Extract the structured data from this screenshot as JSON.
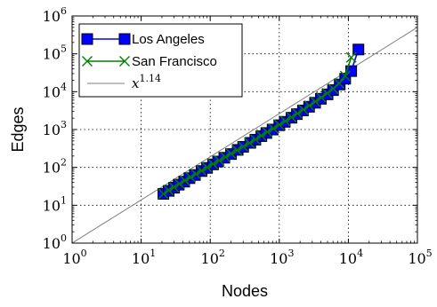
{
  "chart_data": {
    "type": "scatter",
    "xlabel": "Nodes",
    "ylabel": "Edges",
    "x_scale": "log",
    "y_scale": "log",
    "xlim": [
      1,
      100000
    ],
    "ylim": [
      1,
      1000000
    ],
    "x_ticks": [
      {
        "base": "10",
        "exp": "0"
      },
      {
        "base": "10",
        "exp": "1"
      },
      {
        "base": "10",
        "exp": "2"
      },
      {
        "base": "10",
        "exp": "3"
      },
      {
        "base": "10",
        "exp": "4"
      },
      {
        "base": "10",
        "exp": "5"
      }
    ],
    "y_ticks": [
      {
        "base": "10",
        "exp": "0"
      },
      {
        "base": "10",
        "exp": "1"
      },
      {
        "base": "10",
        "exp": "2"
      },
      {
        "base": "10",
        "exp": "3"
      },
      {
        "base": "10",
        "exp": "4"
      },
      {
        "base": "10",
        "exp": "5"
      },
      {
        "base": "10",
        "exp": "6"
      }
    ],
    "grid": true,
    "legend_position": "top-left",
    "series": [
      {
        "name": "Los Angeles",
        "marker": "square",
        "color": "#0000ff",
        "edge_color": "#000000",
        "x": [
          21,
          25,
          30,
          35,
          42,
          50,
          60,
          75,
          90,
          110,
          130,
          160,
          200,
          250,
          300,
          380,
          450,
          550,
          650,
          800,
          1000,
          1200,
          1500,
          1800,
          2200,
          2700,
          3300,
          4000,
          5000,
          6000,
          7500,
          9000,
          11000,
          14000
        ],
        "y": [
          20,
          24,
          29,
          35,
          42,
          52,
          63,
          80,
          97,
          120,
          143,
          180,
          225,
          290,
          350,
          445,
          540,
          670,
          810,
          1000,
          1300,
          1600,
          2050,
          2550,
          3200,
          4000,
          5100,
          6500,
          8500,
          11000,
          15500,
          22000,
          35000,
          130000
        ]
      },
      {
        "name": "San Francisco",
        "marker": "x",
        "color": "#008000",
        "x": [
          21,
          25,
          30,
          36,
          43,
          52,
          62,
          75,
          90,
          110,
          135,
          165,
          200,
          245,
          300,
          370,
          450,
          550,
          670,
          820,
          1000,
          1220,
          1500,
          1830,
          2230,
          2720,
          3320,
          4050,
          4950,
          6040,
          7370,
          9000,
          11000
        ],
        "y": [
          20,
          25,
          30,
          37,
          45,
          55,
          67,
          82,
          100,
          123,
          152,
          188,
          232,
          286,
          355,
          442,
          550,
          688,
          858,
          1070,
          1340,
          1680,
          2110,
          2660,
          3370,
          4280,
          5470,
          7040,
          9120,
          12000,
          16500,
          26000,
          80000
        ]
      },
      {
        "name": "x^1.14",
        "name_base": "x",
        "name_exp": "1.14",
        "type": "line",
        "color": "#7f7f7f",
        "exponent": 1.14
      }
    ]
  }
}
